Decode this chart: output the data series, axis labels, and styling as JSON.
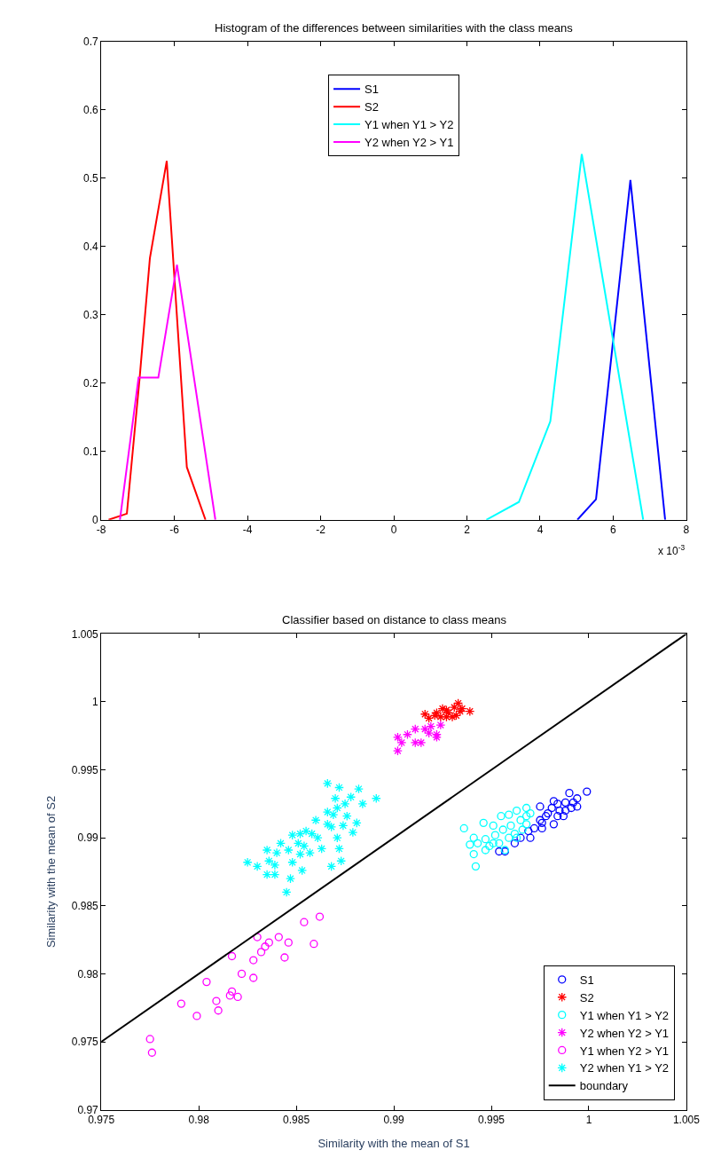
{
  "chart_data": [
    {
      "type": "line",
      "title": "Histogram of the differences between similarities with the class means",
      "annotations": [
        "x 10$^{-3}$"
      ],
      "xlim": [
        -8,
        8
      ],
      "xticks": [
        -8,
        -6,
        -4,
        -2,
        0,
        2,
        4,
        6,
        8
      ],
      "ylim": [
        0,
        0.7
      ],
      "yticks": [
        0,
        0.1,
        0.2,
        0.3,
        0.4,
        0.5,
        0.6,
        0.7
      ],
      "legend": "top",
      "marker": "none",
      "line_style": "solid",
      "series": [
        {
          "name": "S1",
          "color": "#0000ff",
          "x": [
            5.02,
            5.53,
            6.47,
            7.42
          ],
          "values": [
            0,
            0.03,
            0.497,
            0
          ]
        },
        {
          "name": "S2",
          "color": "#ff0000",
          "x": [
            -7.8,
            -7.3,
            -6.95,
            -6.67,
            -6.21,
            -5.66,
            -5.15
          ],
          "values": [
            0,
            0.009,
            0.208,
            0.383,
            0.525,
            0.077,
            0
          ]
        },
        {
          "name": "Y1 when Y1 > Y2",
          "color": "#00ffff",
          "x": [
            2.53,
            3.42,
            4.28,
            5.14,
            6.82
          ],
          "values": [
            0,
            0.026,
            0.144,
            0.535,
            0
          ]
        },
        {
          "name": "Y2 when Y2 > Y1",
          "color": "#ff00ff",
          "x": [
            -7.49,
            -6.98,
            -6.44,
            -5.93,
            -4.88
          ],
          "values": [
            0,
            0.208,
            0.208,
            0.373,
            0
          ]
        }
      ]
    },
    {
      "type": "scatter",
      "title": "Classifier based on distance to class means",
      "xlabel": "Similarity with the mean of S1",
      "ylabel": "Similarity with the mean of S2",
      "xlim": [
        0.975,
        1.005
      ],
      "xticks": [
        0.975,
        0.98,
        0.985,
        0.99,
        0.995,
        1,
        1.005
      ],
      "ylim": [
        0.97,
        1.005
      ],
      "yticks": [
        0.97,
        0.975,
        0.98,
        0.985,
        0.99,
        0.995,
        1,
        1.005
      ],
      "legend": "bottom right",
      "series": [
        {
          "name": "S1",
          "color": "#0000ff",
          "marker": "circle",
          "x": [
            0.9975,
            0.9982,
            0.999,
            0.9999,
            0.9994,
            0.9988,
            0.9991,
            0.9985,
            0.9979,
            0.9975,
            0.9972,
            0.9969,
            0.9976,
            0.9982,
            0.9978,
            0.9984,
            0.9992,
            0.9987,
            0.997,
            0.9965,
            0.9962,
            0.9957,
            0.9954,
            0.9988,
            0.9981,
            0.9994,
            0.9976,
            0.9984
          ],
          "values": [
            0.9923,
            0.9927,
            0.9933,
            0.9934,
            0.9929,
            0.9926,
            0.9922,
            0.992,
            0.9918,
            0.9913,
            0.9907,
            0.9905,
            0.9907,
            0.991,
            0.9916,
            0.9925,
            0.9926,
            0.9916,
            0.99,
            0.99,
            0.9896,
            0.989,
            0.989,
            0.992,
            0.9922,
            0.9923,
            0.9911,
            0.9916
          ]
        },
        {
          "name": "S2",
          "color": "#ff0000",
          "marker": "cross",
          "x": [
            0.9916,
            0.9918,
            0.9922,
            0.9925,
            0.9928,
            0.9931,
            0.9933,
            0.9934,
            0.9939,
            0.9927,
            0.993,
            0.9924,
            0.9935,
            0.9932,
            0.9921,
            0.9927
          ],
          "values": [
            0.9991,
            0.9988,
            0.9992,
            0.9995,
            0.9992,
            0.9996,
            0.9999,
            0.9993,
            0.9993,
            0.9989,
            0.9989,
            0.9989,
            0.9995,
            0.999,
            0.999,
            0.9994
          ]
        },
        {
          "name": "Y1 when Y1 > Y2",
          "color": "#00ffff",
          "marker": "circle",
          "x": [
            0.9936,
            0.9946,
            0.9951,
            0.9955,
            0.9959,
            0.9963,
            0.9968,
            0.9968,
            0.9941,
            0.9939,
            0.9943,
            0.9941,
            0.9942,
            0.9947,
            0.9949,
            0.9952,
            0.9954,
            0.9956,
            0.996,
            0.9962,
            0.9965,
            0.9966,
            0.997,
            0.9959,
            0.9963,
            0.9951,
            0.9957,
            0.9968,
            0.9947
          ],
          "values": [
            0.9907,
            0.9911,
            0.9909,
            0.9916,
            0.9917,
            0.992,
            0.9922,
            0.9916,
            0.99,
            0.9895,
            0.9896,
            0.9888,
            0.9879,
            0.9899,
            0.9894,
            0.9902,
            0.9896,
            0.9906,
            0.9909,
            0.9903,
            0.9913,
            0.9906,
            0.9918,
            0.99,
            0.99,
            0.9896,
            0.9891,
            0.991,
            0.9891
          ]
        },
        {
          "name": "Y2 when Y2 > Y1",
          "color": "#ff00ff",
          "marker": "cross",
          "x": [
            0.9902,
            0.9904,
            0.9902,
            0.9907,
            0.9911,
            0.9911,
            0.9914,
            0.9918,
            0.9922,
            0.9916,
            0.9919,
            0.9924,
            0.9922
          ],
          "values": [
            0.9974,
            0.997,
            0.9964,
            0.9976,
            0.998,
            0.997,
            0.997,
            0.9977,
            0.9974,
            0.998,
            0.9982,
            0.9983,
            0.9976
          ]
        },
        {
          "name": "Y1 when Y2 > Y1",
          "color": "#ff00ff",
          "marker": "circle",
          "x": [
            0.9862,
            0.9854,
            0.983,
            0.9841,
            0.9836,
            0.9846,
            0.9834,
            0.9832,
            0.9859,
            0.9817,
            0.9828,
            0.9844,
            0.9822,
            0.9828,
            0.9804,
            0.9817,
            0.9816,
            0.982,
            0.9809,
            0.9791,
            0.981,
            0.9799,
            0.9775,
            0.9776
          ],
          "values": [
            0.9842,
            0.9838,
            0.9827,
            0.9827,
            0.9823,
            0.9823,
            0.982,
            0.9816,
            0.9822,
            0.9813,
            0.981,
            0.9812,
            0.98,
            0.9797,
            0.9794,
            0.9787,
            0.9784,
            0.9783,
            0.978,
            0.9778,
            0.9773,
            0.9769,
            0.9752,
            0.9742
          ]
        },
        {
          "name": "Y2 when Y1 > Y2",
          "color": "#00ffff",
          "marker": "cross",
          "x": [
            0.9866,
            0.9872,
            0.9882,
            0.9891,
            0.987,
            0.9878,
            0.9884,
            0.9875,
            0.9871,
            0.9866,
            0.9869,
            0.9876,
            0.986,
            0.9881,
            0.9879,
            0.9874,
            0.9866,
            0.9868,
            0.9855,
            0.9852,
            0.9858,
            0.9848,
            0.9851,
            0.9842,
            0.9854,
            0.9861,
            0.9871,
            0.9872,
            0.9863,
            0.9835,
            0.9846,
            0.9857,
            0.984,
            0.9852,
            0.9836,
            0.9825,
            0.983,
            0.9839,
            0.9848,
            0.9873,
            0.9868,
            0.9853,
            0.9835,
            0.9839,
            0.9847,
            0.9845
          ],
          "values": [
            0.994,
            0.9937,
            0.9936,
            0.9929,
            0.9929,
            0.993,
            0.9925,
            0.9925,
            0.9922,
            0.9919,
            0.9917,
            0.9916,
            0.9913,
            0.9911,
            0.9904,
            0.9909,
            0.991,
            0.9908,
            0.9905,
            0.9903,
            0.9903,
            0.9902,
            0.9896,
            0.9896,
            0.9894,
            0.99,
            0.99,
            0.9892,
            0.9892,
            0.9891,
            0.9891,
            0.9889,
            0.9889,
            0.9888,
            0.9883,
            0.9882,
            0.9879,
            0.988,
            0.9882,
            0.9883,
            0.9879,
            0.9876,
            0.9873,
            0.9873,
            0.987,
            0.986
          ]
        },
        {
          "name": "boundary",
          "type": "line",
          "color": "#000000",
          "marker": "none",
          "x": [
            0.975,
            1.005
          ],
          "values": [
            0.975,
            1.005
          ]
        }
      ]
    }
  ]
}
